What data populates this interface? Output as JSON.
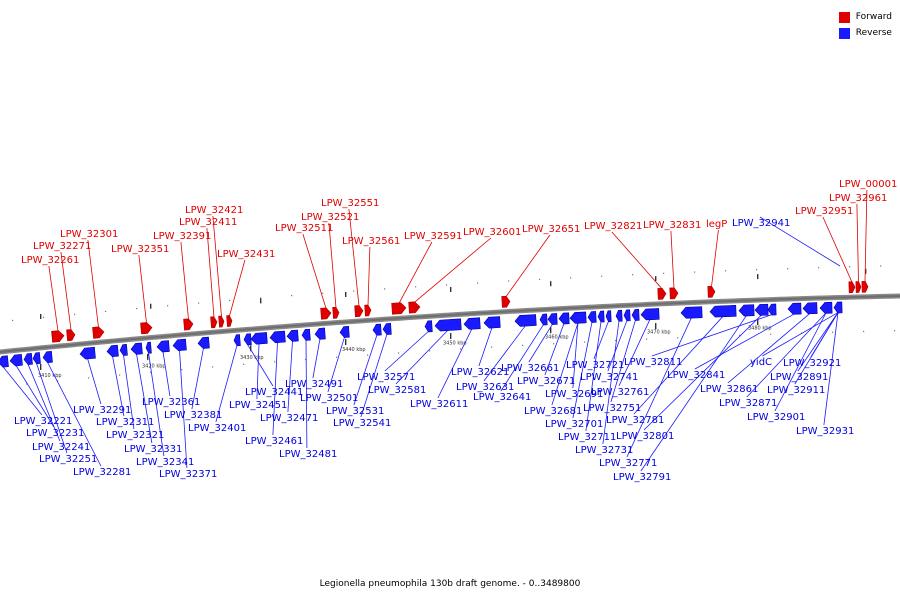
{
  "legend": {
    "forward_label": "Forward",
    "reverse_label": "Reverse",
    "forward_color": "#e00000",
    "reverse_color": "#1a1aff"
  },
  "caption": "Legionella pneumophila 130b draft genome. - 0..3489800",
  "ticks": [
    "3410 kbp",
    "3420 kbp",
    "3430 kbp",
    "3440 kbp",
    "3450 kbp",
    "3460 kbp",
    "3470 kbp",
    "3480 kbp"
  ],
  "forward_labels": [
    "LPW_32261",
    "LPW_32271",
    "LPW_32301",
    "LPW_32351",
    "LPW_32391",
    "LPW_32411",
    "LPW_32421",
    "LPW_32431",
    "LPW_32511",
    "LPW_32521",
    "LPW_32551",
    "LPW_32561",
    "LPW_32591",
    "LPW_32601",
    "LPW_32651",
    "LPW_32821",
    "LPW_32831",
    "legP",
    "LPW_32951",
    "LPW_32961",
    "LPW_00001"
  ],
  "reverse_top_labels": [
    "LPW_32941"
  ],
  "reverse_labels": [
    "LPW_32221",
    "LPW_32231",
    "LPW_32241",
    "LPW_32251",
    "LPW_32281",
    "LPW_32291",
    "LPW_32311",
    "LPW_32321",
    "LPW_32331",
    "LPW_32341",
    "LPW_32361",
    "LPW_32371",
    "LPW_32381",
    "LPW_32401",
    "LPW_32441",
    "LPW_32451",
    "LPW_32461",
    "LPW_32471",
    "LPW_32481",
    "LPW_32491",
    "LPW_32501",
    "LPW_32531",
    "LPW_32541",
    "LPW_32571",
    "LPW_32581",
    "LPW_32611",
    "LPW_32621",
    "LPW_32631",
    "LPW_32641",
    "LPW_32661",
    "LPW_32671",
    "LPW_32681",
    "LPW_32691",
    "LPW_32701",
    "LPW_32711",
    "LPW_32721",
    "LPW_32731",
    "LPW_32741",
    "LPW_32751",
    "LPW_32761",
    "LPW_32771",
    "LPW_32781",
    "LPW_32791",
    "LPW_32801",
    "LPW_32811",
    "LPW_32841",
    "LPW_32861",
    "LPW_32871",
    "yidC",
    "LPW_32891",
    "LPW_32901",
    "LPW_32911",
    "LPW_32921",
    "LPW_32931"
  ]
}
